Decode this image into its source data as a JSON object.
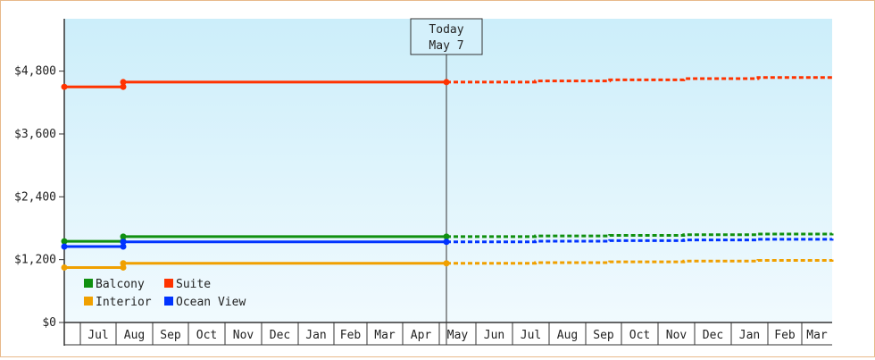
{
  "chart_data": {
    "type": "line",
    "title": "",
    "xlabel": "",
    "ylabel": "",
    "ylim": [
      0,
      5800
    ],
    "y_ticks": [
      {
        "value": 0,
        "label": "$0"
      },
      {
        "value": 1200,
        "label": "$1,200"
      },
      {
        "value": 2400,
        "label": "$2,400"
      },
      {
        "value": 3600,
        "label": "$3,600"
      },
      {
        "value": 4800,
        "label": "$4,800"
      }
    ],
    "months": [
      "Jun",
      "Jul",
      "Aug",
      "Sep",
      "Oct",
      "Nov",
      "Dec",
      "Jan",
      "Feb",
      "Mar",
      "Apr",
      "May",
      "Jun",
      "Jul",
      "Aug",
      "Sep",
      "Oct",
      "Nov",
      "Dec",
      "Jan",
      "Feb",
      "Mar"
    ],
    "x_start": "2024-06-01",
    "x_end": "2025-03-31",
    "today": {
      "label_line1": "Today",
      "label_line2": "May 7"
    },
    "grid": false,
    "legend_placement": "bottom-left",
    "series": [
      {
        "name": "Balcony",
        "color": "#109010",
        "points": [
          {
            "month": "Jun",
            "value": 1550
          },
          {
            "month": "Aug",
            "value": 1550
          },
          {
            "month": "Aug",
            "value": 1640
          },
          {
            "month": "May",
            "value": 1640
          }
        ],
        "forecast": [
          {
            "month": "May",
            "value": 1640
          },
          {
            "month": "Mar",
            "value": 1700
          }
        ]
      },
      {
        "name": "Suite",
        "color": "#ff3300",
        "points": [
          {
            "month": "Jun",
            "value": 4500
          },
          {
            "month": "Aug",
            "value": 4500
          },
          {
            "month": "Aug",
            "value": 4590
          },
          {
            "month": "May",
            "value": 4590
          }
        ],
        "forecast": [
          {
            "month": "May",
            "value": 4590
          },
          {
            "month": "Mar",
            "value": 4700
          }
        ]
      },
      {
        "name": "Interior",
        "color": "#f0a000",
        "points": [
          {
            "month": "Jun",
            "value": 1050
          },
          {
            "month": "Aug",
            "value": 1050
          },
          {
            "month": "Aug",
            "value": 1130
          },
          {
            "month": "May",
            "value": 1130
          }
        ],
        "forecast": [
          {
            "month": "May",
            "value": 1130
          },
          {
            "month": "Mar",
            "value": 1200
          }
        ]
      },
      {
        "name": "Ocean View",
        "color": "#0033ff",
        "points": [
          {
            "month": "Jun",
            "value": 1450
          },
          {
            "month": "Aug",
            "value": 1450
          },
          {
            "month": "Aug",
            "value": 1540
          },
          {
            "month": "May",
            "value": 1540
          }
        ],
        "forecast": [
          {
            "month": "May",
            "value": 1540
          },
          {
            "month": "Mar",
            "value": 1600
          }
        ]
      }
    ]
  }
}
